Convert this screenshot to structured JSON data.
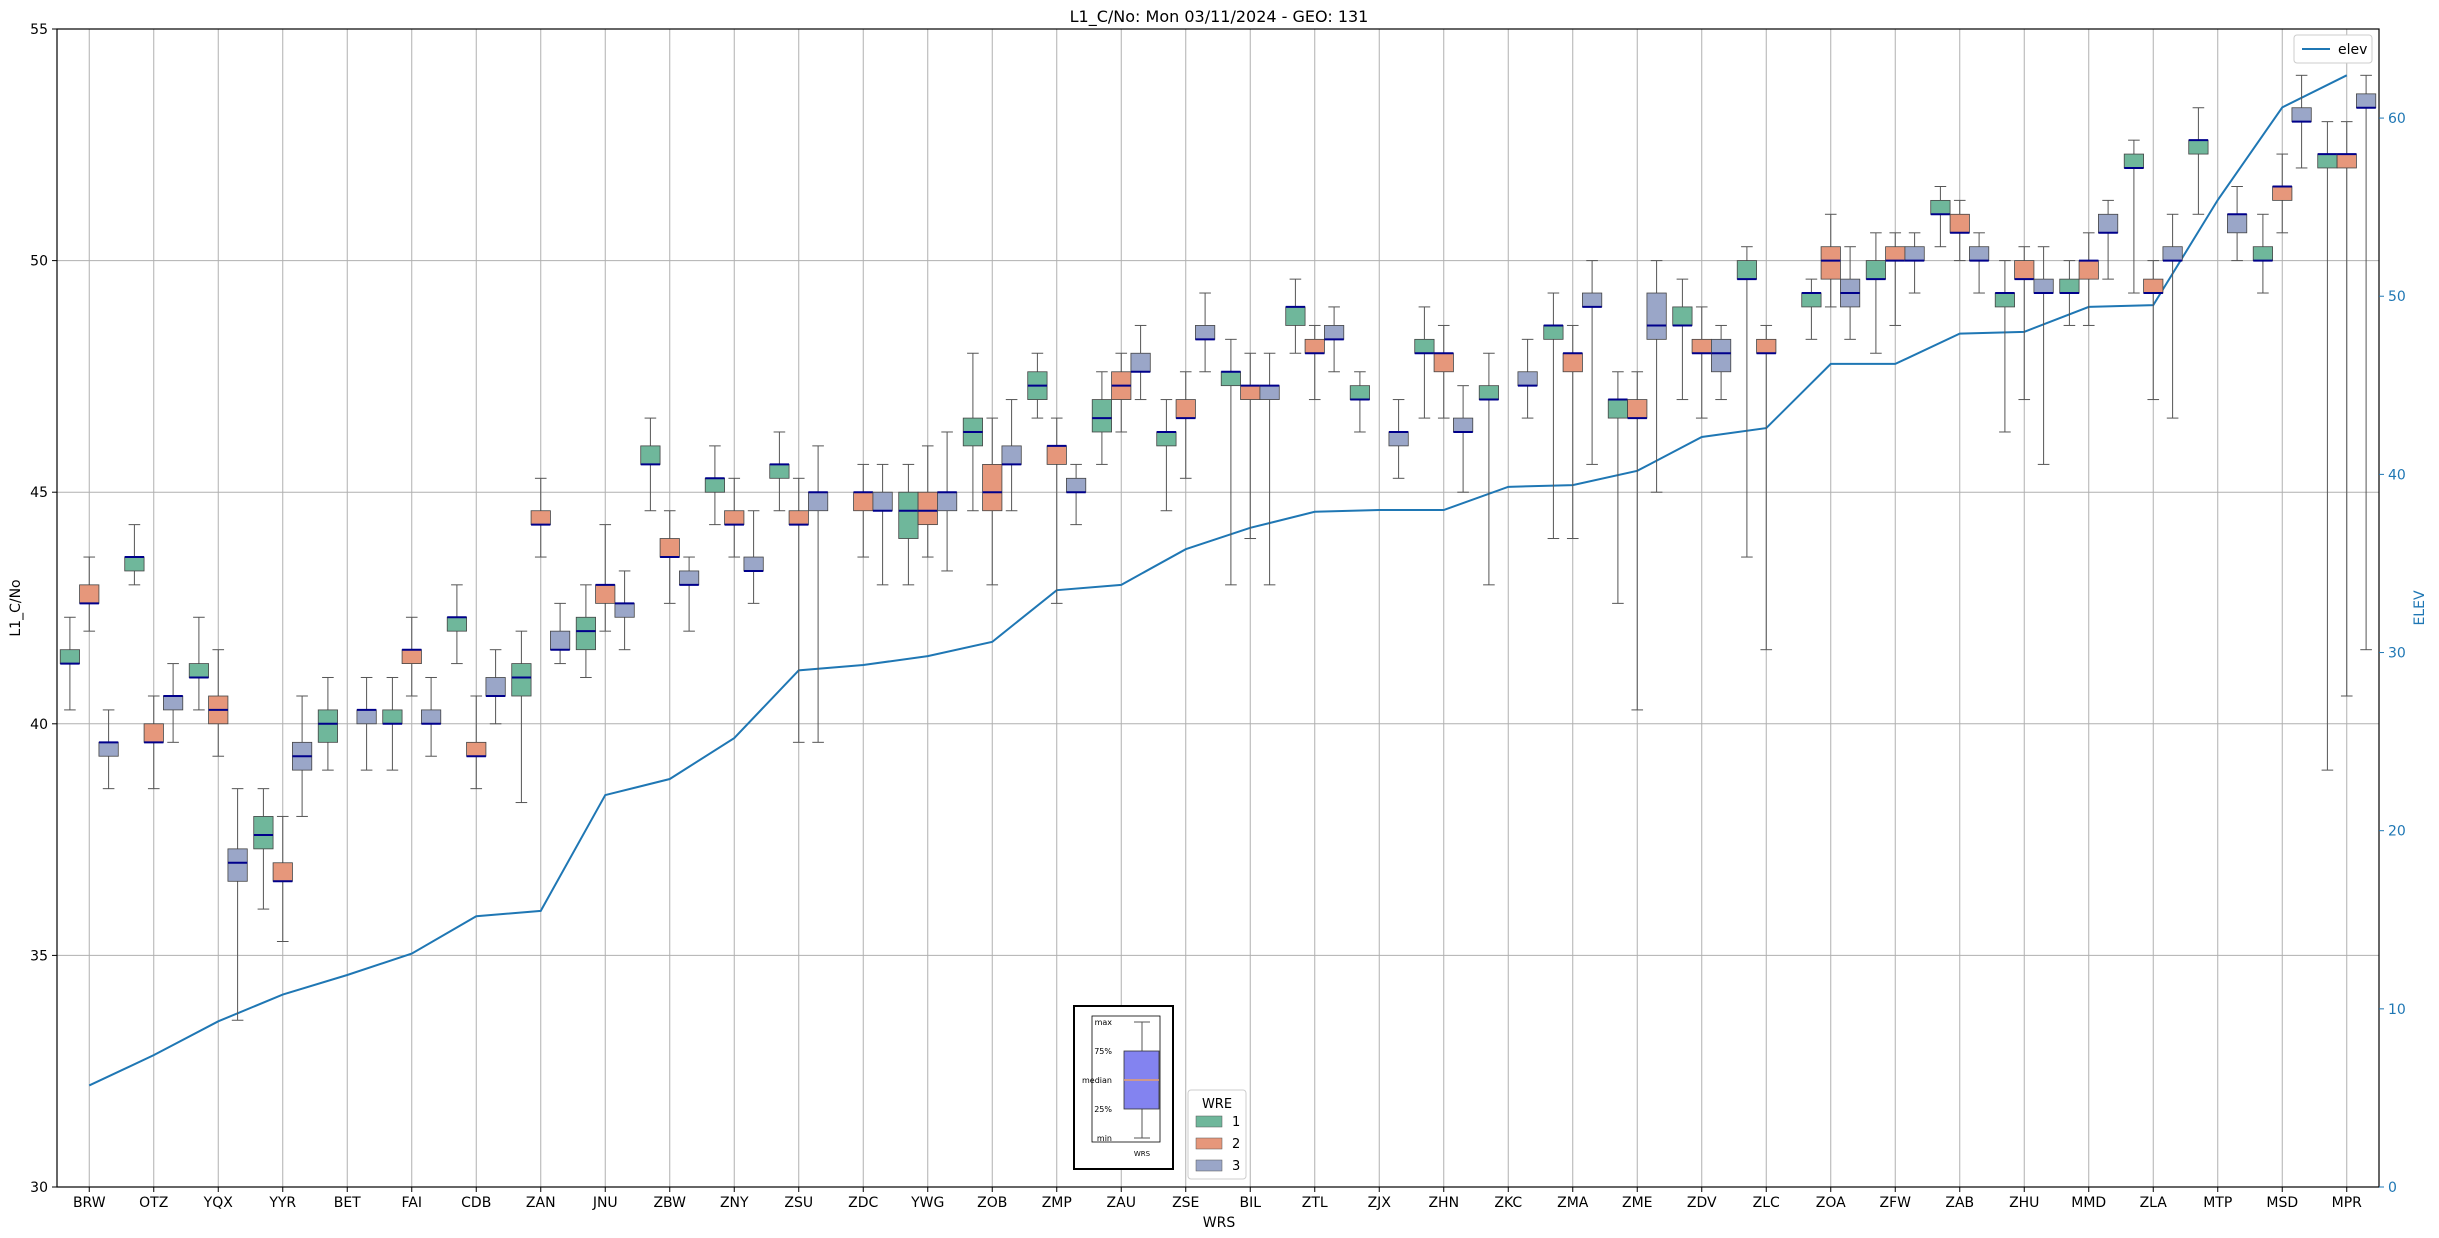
{
  "chart_data": {
    "type": "box",
    "title": "L1_C/No: Mon 03/11/2024 - GEO: 131",
    "xlabel": "WRS",
    "ylabel": "L1_C/No",
    "y2label": "ELEV",
    "ylim": [
      30,
      55
    ],
    "y2lim": [
      0,
      65
    ],
    "yticks": [
      "30",
      "35",
      "40",
      "45",
      "50",
      "55"
    ],
    "y2ticks": [
      "0",
      "10",
      "20",
      "30",
      "40",
      "50",
      "60"
    ],
    "grid": true,
    "categories": [
      "BRW",
      "OTZ",
      "YQX",
      "YYR",
      "BET",
      "FAI",
      "CDB",
      "ZAN",
      "JNU",
      "ZBW",
      "ZNY",
      "ZSU",
      "ZDC",
      "YWG",
      "ZOB",
      "ZMP",
      "ZAU",
      "ZSE",
      "BIL",
      "ZTL",
      "ZJX",
      "ZHN",
      "ZKC",
      "ZMA",
      "ZME",
      "ZDV",
      "ZLC",
      "ZOA",
      "ZFW",
      "ZAB",
      "ZHU",
      "MMD",
      "ZLA",
      "MTP",
      "MSD",
      "MPR"
    ],
    "legend": {
      "title": "WRE",
      "placement": "bottom-center",
      "entries": [
        {
          "label": "1",
          "color": "#6fb79b"
        },
        {
          "label": "2",
          "color": "#e6977b"
        },
        {
          "label": "3",
          "color": "#9aa6c8"
        }
      ]
    },
    "line_legend": {
      "label": "elev",
      "color": "#1f77b4",
      "placement": "top-right"
    },
    "boxes": [
      [
        0,
        1,
        40.3,
        41.3,
        41.3,
        41.6,
        42.3
      ],
      [
        0,
        2,
        42,
        42.6,
        42.6,
        43,
        43.6
      ],
      [
        0,
        3,
        38.6,
        39.3,
        39.6,
        39.6,
        40.3
      ],
      [
        1,
        1,
        43,
        43.3,
        43.6,
        43.6,
        44.3
      ],
      [
        1,
        2,
        38.6,
        39.6,
        39.6,
        40,
        40.6
      ],
      [
        1,
        3,
        39.6,
        40.3,
        40.6,
        40.6,
        41.3
      ],
      [
        2,
        1,
        40.3,
        41,
        41,
        41.3,
        42.3
      ],
      [
        2,
        2,
        39.3,
        40,
        40.3,
        40.6,
        41.6
      ],
      [
        2,
        3,
        33.6,
        36.6,
        37,
        37.3,
        38.6
      ],
      [
        3,
        1,
        36,
        37.3,
        37.6,
        38,
        38.6
      ],
      [
        3,
        2,
        35.3,
        36.6,
        36.6,
        37,
        38
      ],
      [
        3,
        3,
        38,
        39,
        39.3,
        39.6,
        40.6
      ],
      [
        4,
        1,
        39,
        39.6,
        40,
        40.3,
        41
      ],
      [
        4,
        3,
        39,
        40,
        40.3,
        40.3,
        41
      ],
      [
        5,
        1,
        39,
        40,
        40,
        40.3,
        41
      ],
      [
        5,
        2,
        40.6,
        41.3,
        41.6,
        41.6,
        42.3
      ],
      [
        5,
        3,
        39.3,
        40,
        40,
        40.3,
        41
      ],
      [
        6,
        1,
        41.3,
        42,
        42.3,
        42.3,
        43
      ],
      [
        6,
        2,
        38.6,
        39.3,
        39.3,
        39.6,
        40.6
      ],
      [
        6,
        3,
        40,
        40.6,
        40.6,
        41,
        41.6
      ],
      [
        7,
        1,
        38.3,
        40.6,
        41,
        41.3,
        42
      ],
      [
        7,
        2,
        43.6,
        44.3,
        44.3,
        44.6,
        45.3
      ],
      [
        7,
        3,
        41.3,
        41.6,
        41.6,
        42,
        42.6
      ],
      [
        8,
        1,
        41,
        41.6,
        42,
        42.3,
        43
      ],
      [
        8,
        2,
        42,
        42.6,
        43,
        43,
        44.3
      ],
      [
        8,
        3,
        41.6,
        42.3,
        42.6,
        42.6,
        43.3
      ],
      [
        9,
        1,
        44.6,
        45.6,
        45.6,
        46,
        46.6
      ],
      [
        9,
        2,
        42.6,
        43.6,
        43.6,
        44,
        44.6
      ],
      [
        9,
        3,
        42,
        43,
        43,
        43.3,
        43.6
      ],
      [
        10,
        1,
        44.3,
        45,
        45.3,
        45.3,
        46
      ],
      [
        10,
        2,
        43.6,
        44.3,
        44.3,
        44.6,
        45.3
      ],
      [
        10,
        3,
        42.6,
        43.3,
        43.3,
        43.6,
        44.6
      ],
      [
        11,
        1,
        44.6,
        45.3,
        45.6,
        45.6,
        46.3
      ],
      [
        11,
        2,
        39.6,
        44.3,
        44.3,
        44.6,
        45.3
      ],
      [
        11,
        3,
        39.6,
        44.6,
        45,
        45,
        46
      ],
      [
        12,
        2,
        43.6,
        44.6,
        45,
        45,
        45.6
      ],
      [
        12,
        3,
        43,
        44.6,
        44.6,
        45,
        45.6
      ],
      [
        13,
        1,
        43,
        44,
        44.6,
        45,
        45.6
      ],
      [
        13,
        2,
        43.6,
        44.3,
        44.6,
        45,
        46
      ],
      [
        13,
        3,
        43.3,
        44.6,
        45,
        45,
        46.3
      ],
      [
        14,
        1,
        44.6,
        46,
        46.3,
        46.6,
        48
      ],
      [
        14,
        2,
        43,
        44.6,
        45,
        45.6,
        46.6
      ],
      [
        14,
        3,
        44.6,
        45.6,
        45.6,
        46,
        47
      ],
      [
        15,
        1,
        46.6,
        47,
        47.3,
        47.6,
        48
      ],
      [
        15,
        2,
        42.6,
        45.6,
        46,
        46,
        46.6
      ],
      [
        15,
        3,
        44.3,
        45,
        45,
        45.3,
        45.6
      ],
      [
        16,
        1,
        45.6,
        46.3,
        46.6,
        47,
        47.6
      ],
      [
        16,
        2,
        46.3,
        47,
        47.3,
        47.6,
        48
      ],
      [
        16,
        3,
        47,
        47.6,
        47.6,
        48,
        48.6
      ],
      [
        17,
        1,
        44.6,
        46,
        46.3,
        46.3,
        47
      ],
      [
        17,
        2,
        45.3,
        46.6,
        46.6,
        47,
        47.6
      ],
      [
        17,
        3,
        47.6,
        48.3,
        48.3,
        48.6,
        49.3
      ],
      [
        18,
        1,
        43,
        47.3,
        47.6,
        47.6,
        48.3
      ],
      [
        18,
        2,
        44,
        47,
        47.3,
        47.3,
        48
      ],
      [
        18,
        3,
        43,
        47,
        47.3,
        47.3,
        48
      ],
      [
        19,
        1,
        48,
        48.6,
        49,
        49,
        49.6
      ],
      [
        19,
        2,
        47,
        48,
        48,
        48.3,
        48.6
      ],
      [
        19,
        3,
        47.6,
        48.3,
        48.3,
        48.6,
        49
      ],
      [
        20,
        1,
        46.3,
        47,
        47,
        47.3,
        47.6
      ],
      [
        20,
        3,
        45.3,
        46,
        46.3,
        46.3,
        47
      ],
      [
        21,
        1,
        46.6,
        48,
        48,
        48.3,
        49
      ],
      [
        21,
        2,
        46.6,
        47.6,
        48,
        48,
        48.6
      ],
      [
        21,
        3,
        45,
        46.3,
        46.3,
        46.6,
        47.3
      ],
      [
        22,
        1,
        43,
        47,
        47,
        47.3,
        48
      ],
      [
        22,
        3,
        46.6,
        47.3,
        47.3,
        47.6,
        48.3
      ],
      [
        23,
        1,
        44,
        48.3,
        48.6,
        48.6,
        49.3
      ],
      [
        23,
        2,
        44,
        47.6,
        48,
        48,
        48.6
      ],
      [
        23,
        3,
        45.6,
        49,
        49,
        49.3,
        50
      ],
      [
        24,
        1,
        42.6,
        46.6,
        47,
        47,
        47.6
      ],
      [
        24,
        2,
        40.3,
        46.6,
        46.6,
        47,
        47.6
      ],
      [
        24,
        3,
        45,
        48.3,
        48.6,
        49.3,
        50
      ],
      [
        25,
        1,
        47,
        48.6,
        48.6,
        49,
        49.6
      ],
      [
        25,
        2,
        46.6,
        48,
        48,
        48.3,
        49
      ],
      [
        25,
        3,
        47,
        47.6,
        48,
        48.3,
        48.6
      ],
      [
        26,
        1,
        43.6,
        49.6,
        49.6,
        50,
        50.3
      ],
      [
        26,
        2,
        41.6,
        48,
        48,
        48.3,
        48.6
      ],
      [
        27,
        1,
        48.3,
        49,
        49.3,
        49.3,
        49.6
      ],
      [
        27,
        2,
        49,
        49.6,
        50,
        50.3,
        51
      ],
      [
        27,
        3,
        48.3,
        49,
        49.3,
        49.6,
        50.3
      ],
      [
        28,
        1,
        48,
        49.6,
        49.6,
        50,
        50.6
      ],
      [
        28,
        2,
        48.6,
        50,
        50,
        50.3,
        50.6
      ],
      [
        28,
        3,
        49.3,
        50,
        50,
        50.3,
        50.6
      ],
      [
        29,
        1,
        50.3,
        51,
        51,
        51.3,
        51.6
      ],
      [
        29,
        2,
        50,
        50.6,
        50.6,
        51,
        51.3
      ],
      [
        29,
        3,
        49.3,
        50,
        50,
        50.3,
        50.6
      ],
      [
        30,
        1,
        46.3,
        49,
        49.3,
        49.3,
        50
      ],
      [
        30,
        2,
        47,
        49.6,
        49.6,
        50,
        50.3
      ],
      [
        30,
        3,
        45.6,
        49.3,
        49.3,
        49.6,
        50.3
      ],
      [
        31,
        1,
        48.6,
        49.3,
        49.3,
        49.6,
        50
      ],
      [
        31,
        2,
        48.6,
        49.6,
        50,
        50,
        50.6
      ],
      [
        31,
        3,
        49.6,
        50.6,
        50.6,
        51,
        51.3
      ],
      [
        32,
        1,
        49.3,
        52,
        52,
        52.3,
        52.6
      ],
      [
        32,
        2,
        47,
        49.3,
        49.3,
        49.6,
        50
      ],
      [
        32,
        3,
        46.6,
        50,
        50,
        50.3,
        51
      ],
      [
        33,
        1,
        51,
        52.3,
        52.6,
        52.6,
        53.3
      ],
      [
        33,
        3,
        50,
        50.6,
        51,
        51,
        51.6
      ],
      [
        34,
        1,
        49.3,
        50,
        50,
        50.3,
        51
      ],
      [
        34,
        2,
        50.6,
        51.3,
        51.6,
        51.6,
        52.3
      ],
      [
        34,
        3,
        52,
        53,
        53,
        53.3,
        54
      ],
      [
        35,
        1,
        39,
        52,
        52.3,
        52.3,
        53
      ],
      [
        35,
        2,
        40.6,
        52,
        52.3,
        52.3,
        53
      ],
      [
        35,
        3,
        41.6,
        53.3,
        53.3,
        53.6,
        54
      ]
    ],
    "elev": [
      5.7,
      7.4,
      9.3,
      10.8,
      11.9,
      13.1,
      15.2,
      15.5,
      22.0,
      22.9,
      25.2,
      29.0,
      29.3,
      29.8,
      30.6,
      33.5,
      33.8,
      35.8,
      37.0,
      37.9,
      38.0,
      38.0,
      39.3,
      39.4,
      40.2,
      42.1,
      42.6,
      46.2,
      46.2,
      47.9,
      48.0,
      49.4,
      49.5,
      55.4,
      60.6,
      62.4
    ]
  },
  "inset": {
    "labels": [
      "max",
      "75%",
      "median",
      "25%",
      "min"
    ],
    "xlabel": "WRS",
    "box_color": "#8383f0",
    "median_color": "#e8a06a"
  }
}
